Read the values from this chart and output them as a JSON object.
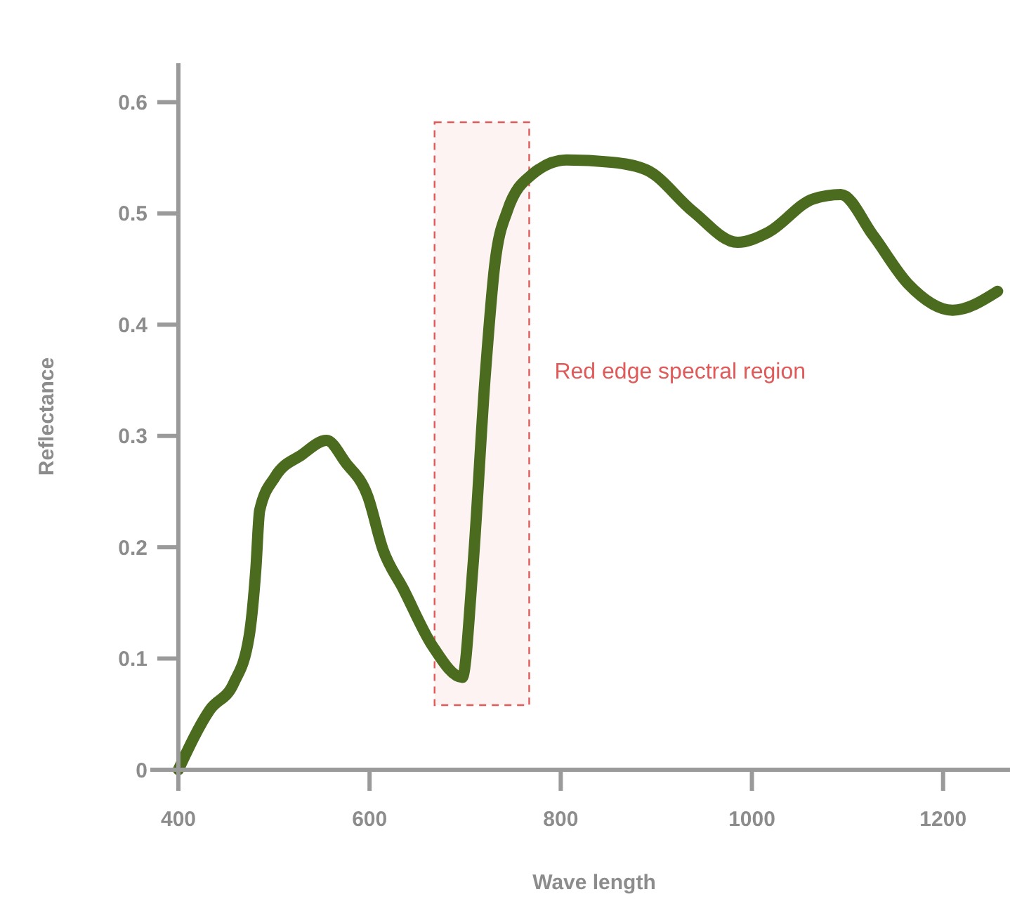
{
  "chart_data": {
    "type": "line",
    "xlabel": "Wave length",
    "ylabel": "Reflectance",
    "x": [
      400,
      433,
      458,
      474,
      481,
      485,
      501,
      529,
      555,
      575,
      598,
      614,
      635,
      666,
      697,
      708,
      721,
      731,
      744,
      770,
      806,
      853,
      890,
      938,
      985,
      1017,
      1064,
      1093,
      1127,
      1163,
      1210,
      1257
    ],
    "series": [
      {
        "color": "#4b6b1f",
        "values": [
          0,
          0.054,
          0.078,
          0.12,
          0.18,
          0.233,
          0.263,
          0.283,
          0.296,
          0.276,
          0.246,
          0.198,
          0.163,
          0.111,
          0.083,
          0.181,
          0.354,
          0.454,
          0.502,
          0.535,
          0.548,
          0.546,
          0.539,
          0.502,
          0.474,
          0.483,
          0.513,
          0.517,
          0.48,
          0.437,
          0.413,
          0.43
        ]
      }
    ],
    "xlim": [
      400,
      1270
    ],
    "ylim": [
      0,
      0.635
    ],
    "xticks": [
      400,
      600,
      800,
      1000,
      1200
    ],
    "yticks": [
      0,
      0.1,
      0.2,
      0.3,
      0.4,
      0.5,
      0.6
    ],
    "bands": [
      {
        "axis": "x",
        "from": 668,
        "to": 767,
        "label": "Red edge spectral region",
        "color": "#e05a5a"
      }
    ],
    "grid": false,
    "marker": "none",
    "line_style": "solid"
  }
}
